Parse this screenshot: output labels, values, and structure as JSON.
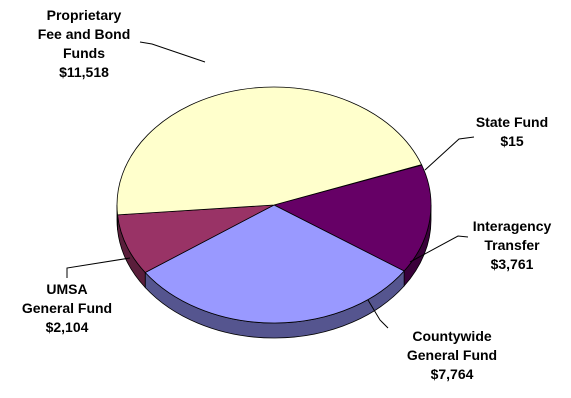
{
  "chart_data": {
    "type": "pie",
    "style": "3d",
    "slices": [
      {
        "label_lines": [
          "State Fund"
        ],
        "amount": "$15",
        "value": 15,
        "color": "#fffdcc",
        "side": "#bdb98a"
      },
      {
        "label_lines": [
          "Interagency",
          "Transfer"
        ],
        "amount": "$3,761",
        "value": 3761,
        "color": "#660066",
        "side": "#3a003a"
      },
      {
        "label_lines": [
          "Countywide",
          "General Fund"
        ],
        "amount": "$7,764",
        "value": 7764,
        "color": "#9999ff",
        "side": "#55558f"
      },
      {
        "label_lines": [
          "UMSA",
          "General Fund"
        ],
        "amount": "$2,104",
        "value": 2104,
        "color": "#993366",
        "side": "#5a1e3b"
      },
      {
        "label_lines": [
          "Proprietary",
          "Fee and Bond",
          "Funds"
        ],
        "amount": "$11,518",
        "value": 11518,
        "color": "#ffffcc",
        "side": "#bdbd8c"
      }
    ],
    "legend": "none"
  }
}
